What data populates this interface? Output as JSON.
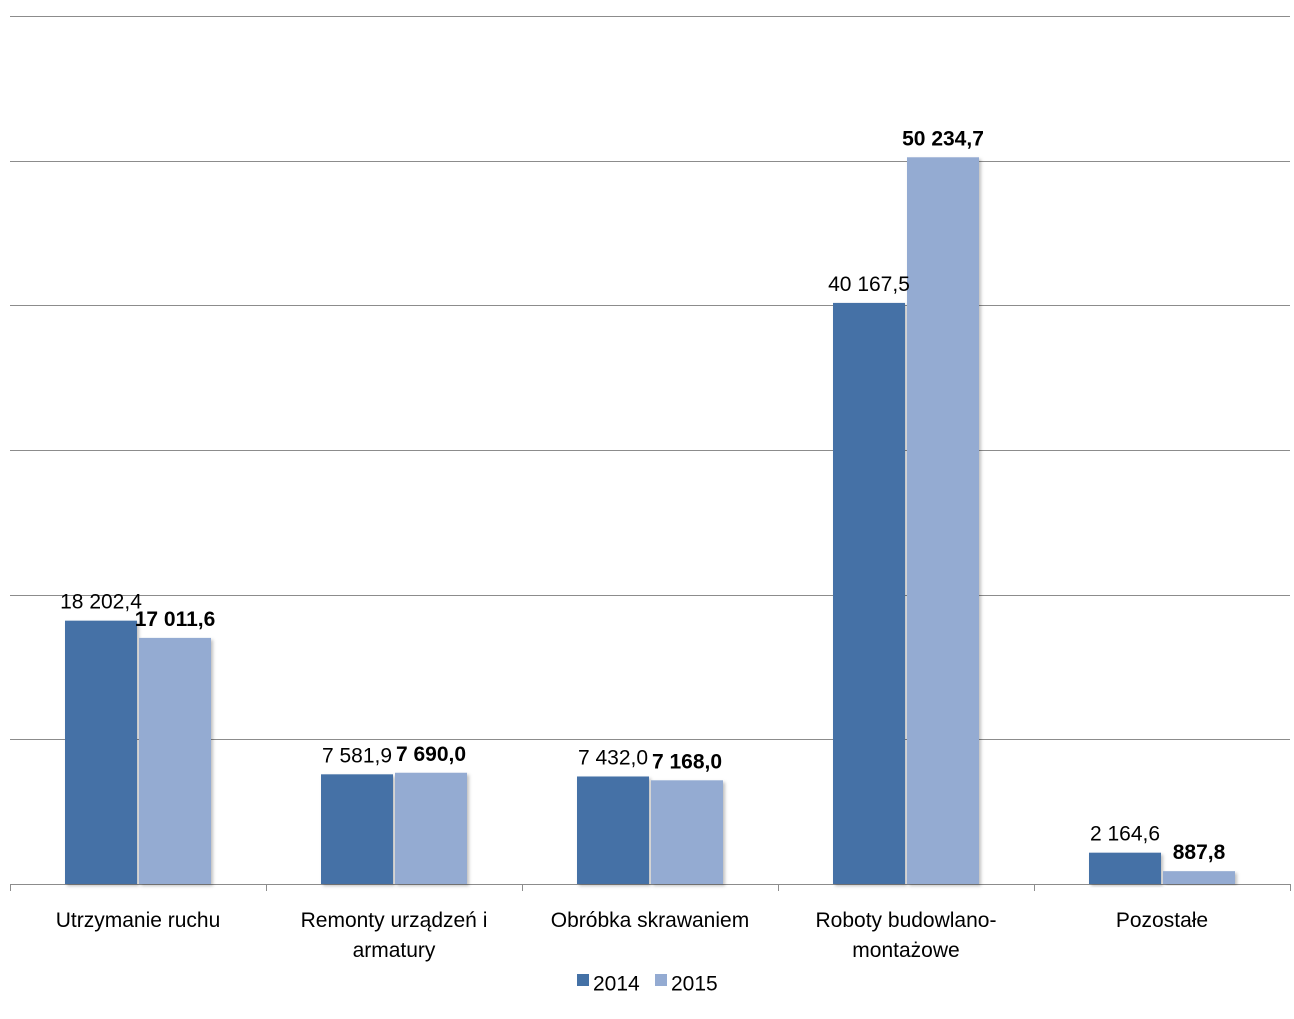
{
  "chart_data": {
    "type": "bar",
    "title": "",
    "xlabel": "",
    "ylabel": "",
    "categories": [
      [
        "Utrzymanie ruchu"
      ],
      [
        "Remonty urządzeń i",
        "armatury"
      ],
      [
        "Obróbka skrawaniem"
      ],
      [
        "Roboty budowlano-",
        "montażowe"
      ],
      [
        "Pozostałe"
      ]
    ],
    "series": [
      {
        "name": "2014",
        "color": "#4471a6",
        "values": [
          18202.4,
          7581.9,
          7432.0,
          40167.5,
          2164.6
        ],
        "labels": [
          "18 202,4",
          "7 581,9",
          "7 432,0",
          "40 167,5",
          "2 164,6"
        ],
        "label_bold": false
      },
      {
        "name": "2015",
        "color": "#94abd2",
        "values": [
          17011.6,
          7690.0,
          7168.0,
          50234.7,
          887.8
        ],
        "labels": [
          "17 011,6",
          "7 690,0",
          "7 168,0",
          "50 234,7",
          "887,8"
        ],
        "label_bold": true
      }
    ],
    "ylim": [
      0,
      60000
    ],
    "grid": true,
    "legend": "bottom-center"
  }
}
